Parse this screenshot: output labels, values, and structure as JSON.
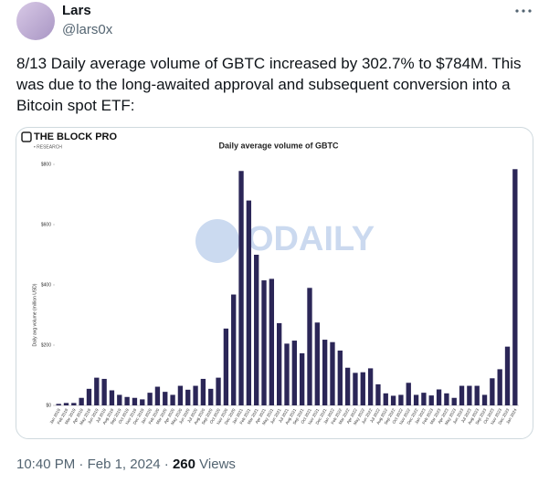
{
  "tweet": {
    "name": "Lars",
    "handle": "@lars0x",
    "text": "8/13 Daily average volume of GBTC increased by 302.7% to $784M. This was due to the long-awaited approval and subsequent conversion into a Bitcoin spot ETF:",
    "time": "10:40 PM",
    "separator": "·",
    "date": "Feb 1, 2024",
    "views": "260",
    "views_label": "Views"
  },
  "brand": {
    "name": "THE BLOCK PRO",
    "sub": "• RESEARCH",
    "watermark": "ODAILY"
  },
  "chart_data": {
    "type": "bar",
    "title": "Daily average volume of GBTC",
    "y_label": "Daily avg volume (million USD)",
    "color": "#2b2657",
    "categories": [
      "Jan 2019",
      "Feb 2019",
      "Mar 2019",
      "Apr 2019",
      "May 2019",
      "Jun 2019",
      "Jul 2019",
      "Aug 2019",
      "Sep 2019",
      "Oct 2019",
      "Nov 2019",
      "Dec 2019",
      "Jan 2020",
      "Feb 2020",
      "Mar 2020",
      "Apr 2020",
      "May 2020",
      "Jun 2020",
      "Jul 2020",
      "Aug 2020",
      "Sep 2020",
      "Oct 2020",
      "Nov 2020",
      "Dec 2020",
      "Jan 2021",
      "Feb 2021",
      "Mar 2021",
      "Apr 2021",
      "May 2021",
      "Jun 2021",
      "Jul 2021",
      "Aug 2021",
      "Sep 2021",
      "Oct 2021",
      "Nov 2021",
      "Dec 2021",
      "Jan 2022",
      "Feb 2022",
      "Mar 2022",
      "Apr 2022",
      "May 2022",
      "Jun 2022",
      "Jul 2022",
      "Aug 2022",
      "Sep 2022",
      "Oct 2022",
      "Nov 2022",
      "Dec 2022",
      "Jan 2023",
      "Feb 2023",
      "Mar 2023",
      "Apr 2023",
      "May 2023",
      "Jun 2023",
      "Jul 2023",
      "Aug 2023",
      "Sep 2023",
      "Oct 2023",
      "Nov 2023",
      "Dec 2023",
      "Jan 2024"
    ],
    "values": [
      5,
      8,
      8,
      25,
      55,
      92,
      88,
      50,
      35,
      28,
      25,
      20,
      42,
      62,
      45,
      35,
      65,
      52,
      65,
      88,
      55,
      92,
      255,
      368,
      778,
      680,
      500,
      415,
      420,
      273,
      205,
      215,
      173,
      390,
      275,
      218,
      210,
      182,
      125,
      108,
      110,
      123,
      70,
      40,
      32,
      35,
      75,
      35,
      42,
      33,
      53,
      40,
      25,
      65,
      65,
      65,
      35,
      90,
      120,
      195,
      784
    ],
    "ylim": [
      0,
      800
    ],
    "yticks": [
      {
        "value": 0,
        "label": "$0"
      },
      {
        "value": 200,
        "label": "$200"
      },
      {
        "value": 400,
        "label": "$400"
      },
      {
        "value": 600,
        "label": "$600"
      },
      {
        "value": 800,
        "label": "$800"
      }
    ]
  }
}
